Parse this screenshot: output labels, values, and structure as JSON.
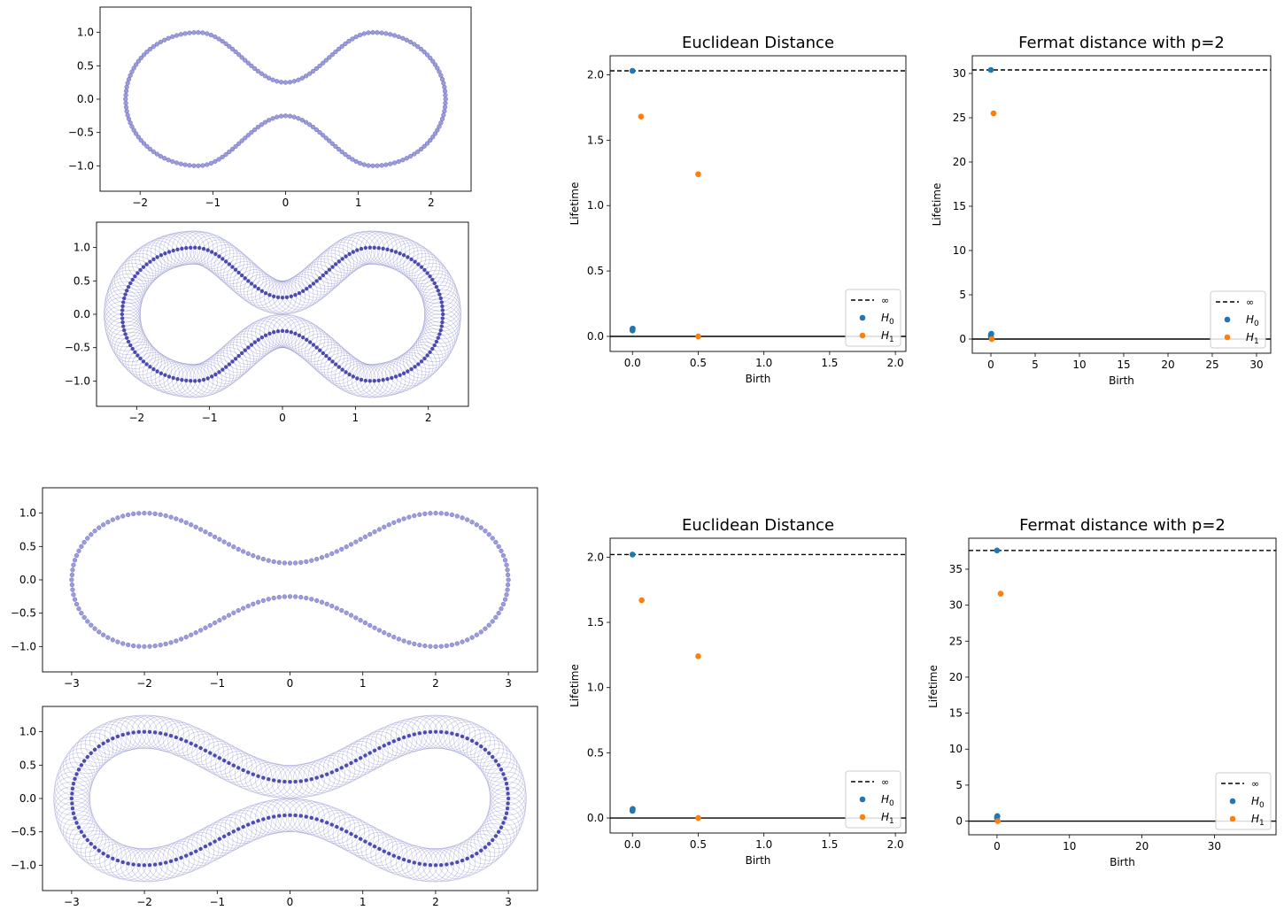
{
  "chart_data": [
    {
      "id": "curve-top-1",
      "type": "scatter",
      "title": "",
      "xlabel": "",
      "ylabel": "",
      "xlim": [
        -2.55,
        2.55
      ],
      "ylim": [
        -1.38,
        1.38
      ],
      "xticks": [
        -2,
        -1,
        0,
        1,
        2
      ],
      "yticks": [
        -1.0,
        -0.5,
        0.0,
        0.5,
        1.0
      ],
      "xtick_labels": [
        "−2",
        "−1",
        "0",
        "1",
        "2"
      ],
      "ytick_labels": [
        "−1.0",
        "−0.5",
        "0.0",
        "0.5",
        "1.0"
      ],
      "curve": {
        "lobe_x": 1.2,
        "lobe_rx": 1.0,
        "waist_y": 0.25,
        "n_points": 200
      },
      "point_color": "#7b7bd0"
    },
    {
      "id": "curve-tube-1",
      "type": "scatter",
      "title": "",
      "xlabel": "",
      "ylabel": "",
      "xlim": [
        -2.55,
        2.55
      ],
      "ylim": [
        -1.38,
        1.38
      ],
      "xticks": [
        -2,
        -1,
        0,
        1,
        2
      ],
      "yticks": [
        -1.0,
        -0.5,
        0.0,
        0.5,
        1.0
      ],
      "xtick_labels": [
        "−2",
        "−1",
        "0",
        "1",
        "2"
      ],
      "ytick_labels": [
        "−1.0",
        "−0.5",
        "0.0",
        "0.5",
        "1.0"
      ],
      "curve": {
        "lobe_x": 1.2,
        "lobe_rx": 1.0,
        "waist_y": 0.25,
        "n_points": 200
      },
      "tube_radius": 0.25,
      "point_color": "#3a3aa8"
    },
    {
      "id": "pd-euclid-1",
      "type": "scatter",
      "title": "Euclidean Distance",
      "xlabel": "Birth",
      "ylabel": "Lifetime",
      "xlim": [
        -0.17,
        2.08
      ],
      "ylim": [
        -0.115,
        2.145
      ],
      "xticks": [
        0.0,
        0.5,
        1.0,
        1.5,
        2.0
      ],
      "yticks": [
        0.0,
        0.5,
        1.0,
        1.5,
        2.0
      ],
      "xtick_labels": [
        "0.0",
        "0.5",
        "1.0",
        "1.5",
        "2.0"
      ],
      "ytick_labels": [
        "0.0",
        "0.5",
        "1.0",
        "1.5",
        "2.0"
      ],
      "infinity_y": 2.03,
      "series": [
        {
          "name": "H0",
          "color": "#1f77b4",
          "points": [
            [
              0.0,
              2.03
            ],
            [
              0.0,
              0.055
            ],
            [
              0.0,
              0.045
            ],
            [
              0.002,
              0.06
            ]
          ]
        },
        {
          "name": "H1",
          "color": "#ff7f0e",
          "points": [
            [
              0.065,
              1.68
            ],
            [
              0.5,
              1.24
            ],
            [
              0.5,
              0.0
            ]
          ]
        }
      ],
      "legend": {
        "position": "lower right",
        "entries": [
          "∞",
          "H",
          "H"
        ],
        "subscripts": [
          "",
          "0",
          "1"
        ]
      }
    },
    {
      "id": "pd-fermat-1",
      "type": "scatter",
      "title": "Fermat distance with p=2",
      "xlabel": "Birth",
      "ylabel": "Lifetime",
      "xlim": [
        -2.1,
        31.6
      ],
      "ylim": [
        -1.6,
        32.0
      ],
      "xticks": [
        0,
        5,
        10,
        15,
        20,
        25,
        30
      ],
      "yticks": [
        0,
        5,
        10,
        15,
        20,
        25,
        30
      ],
      "xtick_labels": [
        "0",
        "5",
        "10",
        "15",
        "20",
        "25",
        "30"
      ],
      "ytick_labels": [
        "0",
        "5",
        "10",
        "15",
        "20",
        "25",
        "30"
      ],
      "infinity_y": 30.4,
      "series": [
        {
          "name": "H0",
          "color": "#1f77b4",
          "points": [
            [
              0.0,
              30.4
            ],
            [
              0.0,
              0.5
            ],
            [
              0.0,
              0.3
            ],
            [
              0.05,
              0.6
            ]
          ]
        },
        {
          "name": "H1",
          "color": "#ff7f0e",
          "points": [
            [
              0.3,
              25.5
            ],
            [
              0.1,
              0.0
            ]
          ]
        }
      ],
      "legend": {
        "position": "lower right",
        "entries": [
          "∞",
          "H",
          "H"
        ],
        "subscripts": [
          "",
          "0",
          "1"
        ]
      }
    },
    {
      "id": "curve-top-2",
      "type": "scatter",
      "title": "",
      "xlabel": "",
      "ylabel": "",
      "xlim": [
        -3.4,
        3.4
      ],
      "ylim": [
        -1.38,
        1.38
      ],
      "xticks": [
        -3,
        -2,
        -1,
        0,
        1,
        2,
        3
      ],
      "yticks": [
        -1.0,
        -0.5,
        0.0,
        0.5,
        1.0
      ],
      "xtick_labels": [
        "−3",
        "−2",
        "−1",
        "0",
        "1",
        "2",
        "3"
      ],
      "ytick_labels": [
        "−1.0",
        "−0.5",
        "0.0",
        "0.5",
        "1.0"
      ],
      "curve": {
        "lobe_x": 2.0,
        "lobe_rx": 1.0,
        "waist_y": 0.25,
        "n_points": 200
      },
      "point_color": "#7b7bd0"
    },
    {
      "id": "curve-tube-2",
      "type": "scatter",
      "title": "",
      "xlabel": "",
      "ylabel": "",
      "xlim": [
        -3.4,
        3.4
      ],
      "ylim": [
        -1.38,
        1.38
      ],
      "xticks": [
        -3,
        -2,
        -1,
        0,
        1,
        2,
        3
      ],
      "yticks": [
        -1.0,
        -0.5,
        0.0,
        0.5,
        1.0
      ],
      "xtick_labels": [
        "−3",
        "−2",
        "−1",
        "0",
        "1",
        "2",
        "3"
      ],
      "ytick_labels": [
        "−1.0",
        "−0.5",
        "0.0",
        "0.5",
        "1.0"
      ],
      "curve": {
        "lobe_x": 2.0,
        "lobe_rx": 1.0,
        "waist_y": 0.25,
        "n_points": 200
      },
      "tube_radius": 0.25,
      "point_color": "#3a3aa8"
    },
    {
      "id": "pd-euclid-2",
      "type": "scatter",
      "title": "Euclidean Distance",
      "xlabel": "Birth",
      "ylabel": "Lifetime",
      "xlim": [
        -0.17,
        2.08
      ],
      "ylim": [
        -0.115,
        2.145
      ],
      "xticks": [
        0.0,
        0.5,
        1.0,
        1.5,
        2.0
      ],
      "yticks": [
        0.0,
        0.5,
        1.0,
        1.5,
        2.0
      ],
      "xtick_labels": [
        "0.0",
        "0.5",
        "1.0",
        "1.5",
        "2.0"
      ],
      "ytick_labels": [
        "0.0",
        "0.5",
        "1.0",
        "1.5",
        "2.0"
      ],
      "infinity_y": 2.02,
      "series": [
        {
          "name": "H0",
          "color": "#1f77b4",
          "points": [
            [
              0.0,
              2.02
            ],
            [
              0.0,
              0.065
            ],
            [
              0.0,
              0.055
            ],
            [
              0.002,
              0.07
            ]
          ]
        },
        {
          "name": "H1",
          "color": "#ff7f0e",
          "points": [
            [
              0.07,
              1.67
            ],
            [
              0.5,
              1.24
            ],
            [
              0.5,
              0.0
            ]
          ]
        }
      ],
      "legend": {
        "position": "lower right",
        "entries": [
          "∞",
          "H",
          "H"
        ],
        "subscripts": [
          "",
          "0",
          "1"
        ]
      }
    },
    {
      "id": "pd-fermat-2",
      "type": "scatter",
      "title": "Fermat distance with p=2",
      "xlabel": "Birth",
      "ylabel": "Lifetime",
      "xlim": [
        -3.9,
        38.5
      ],
      "ylim": [
        -1.9,
        39.3
      ],
      "xticks": [
        0,
        10,
        20,
        30
      ],
      "yticks": [
        0,
        5,
        10,
        15,
        20,
        25,
        30,
        35
      ],
      "xtick_labels": [
        "0",
        "10",
        "20",
        "30"
      ],
      "ytick_labels": [
        "0",
        "5",
        "10",
        "15",
        "20",
        "25",
        "30",
        "35"
      ],
      "infinity_y": 37.6,
      "series": [
        {
          "name": "H0",
          "color": "#1f77b4",
          "points": [
            [
              0.0,
              37.6
            ],
            [
              0.0,
              0.6
            ],
            [
              0.0,
              0.4
            ],
            [
              0.05,
              0.7
            ]
          ]
        },
        {
          "name": "H1",
          "color": "#ff7f0e",
          "points": [
            [
              0.5,
              31.6
            ],
            [
              0.1,
              0.0
            ]
          ]
        }
      ],
      "legend": {
        "position": "lower right",
        "entries": [
          "∞",
          "H",
          "H"
        ],
        "subscripts": [
          "",
          "0",
          "1"
        ]
      }
    }
  ]
}
